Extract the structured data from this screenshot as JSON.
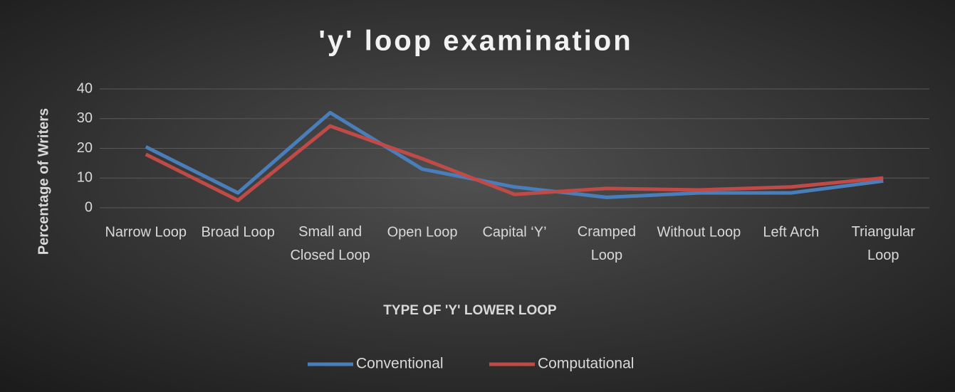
{
  "chart_data": {
    "type": "line",
    "title": "'y' loop examination",
    "x_label": "TYPE OF 'Y' LOWER LOOP",
    "y_label": "Percentage of Writers",
    "categories": [
      "Narrow Loop",
      "Broad Loop",
      "Small and Closed Loop",
      "Open Loop",
      "Capital ‘Y’",
      "Cramped Loop",
      "Without Loop",
      "Left Arch",
      "Triangular Loop"
    ],
    "series": [
      {
        "name": "Conventional",
        "color": "#4a7ebb",
        "values": [
          20.5,
          5,
          32,
          13,
          7,
          3.5,
          5,
          5,
          9
        ]
      },
      {
        "name": "Computational",
        "color": "#be4b48",
        "values": [
          18,
          2.5,
          27.5,
          16.5,
          4.5,
          6.5,
          6,
          7,
          10
        ]
      }
    ],
    "ylim": [
      0,
      40
    ],
    "yticks": [
      0,
      10,
      20,
      30,
      40
    ],
    "grid": true,
    "legend": "bottom"
  }
}
